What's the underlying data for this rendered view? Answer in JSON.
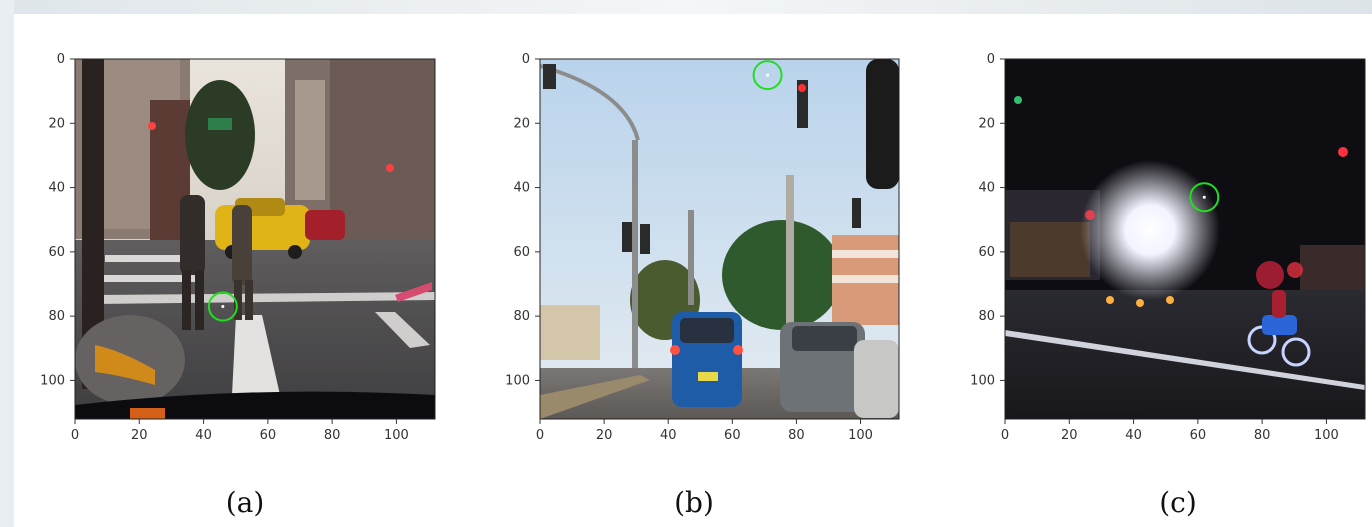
{
  "figure": {
    "captions": [
      "(a)",
      "(b)",
      "(c)"
    ],
    "marker_color": "#22dd22"
  },
  "chart_data": [
    {
      "type": "scatter",
      "panel": "a",
      "scene": "daytime city street with pedestrians crossing and yellow taxi",
      "xlim": [
        0,
        112
      ],
      "ylim": [
        112,
        0
      ],
      "xticks": [
        0,
        20,
        40,
        60,
        80,
        100
      ],
      "yticks": [
        0,
        20,
        40,
        60,
        80,
        100
      ],
      "points": [
        {
          "x": 46,
          "y": 77
        }
      ]
    },
    {
      "type": "scatter",
      "panel": "b",
      "scene": "daytime road with traffic lights, blue car and grey car",
      "xlim": [
        0,
        112
      ],
      "ylim": [
        112,
        0
      ],
      "xticks": [
        0,
        20,
        40,
        60,
        80,
        100
      ],
      "yticks": [
        0,
        20,
        40,
        60,
        80,
        100
      ],
      "points": [
        {
          "x": 71,
          "y": 5
        }
      ]
    },
    {
      "type": "scatter",
      "panel": "c",
      "scene": "night street with bright lights and a cyclist",
      "xlim": [
        0,
        112
      ],
      "ylim": [
        112,
        0
      ],
      "xticks": [
        0,
        20,
        40,
        60,
        80,
        100
      ],
      "yticks": [
        0,
        20,
        40,
        60,
        80,
        100
      ],
      "points": [
        {
          "x": 62,
          "y": 43
        }
      ]
    }
  ]
}
